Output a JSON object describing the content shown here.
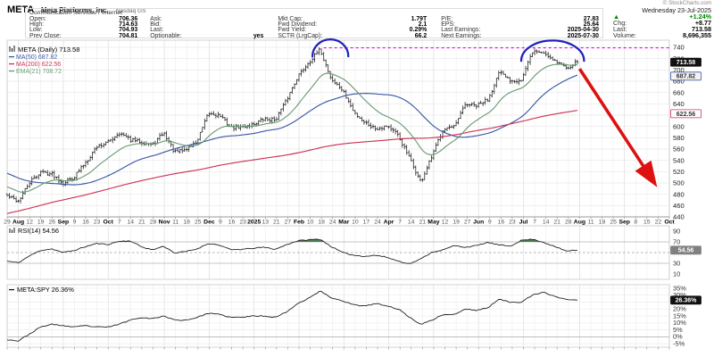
{
  "header": {
    "symbol": "META",
    "company": "Meta Platforms, Inc.",
    "exchange": "Nasdaq GS",
    "sector": "Communication Services / Internet",
    "quote_columns": [
      [
        {
          "label": "Open:",
          "value": "706.36"
        },
        {
          "label": "High:",
          "value": "714.63"
        },
        {
          "label": "Low:",
          "value": "704.93"
        },
        {
          "label": "Prev Close:",
          "value": "704.81"
        }
      ],
      [
        {
          "label": "Ask:",
          "value": ""
        },
        {
          "label": "Bid:",
          "value": ""
        },
        {
          "label": "Last:",
          "value": ""
        },
        {
          "label": "Optionable:",
          "value": "yes"
        }
      ],
      [
        {
          "label": "Mkt Cap:",
          "value": "1.79T"
        },
        {
          "label": "Fwd Dividend:",
          "value": "2.1"
        },
        {
          "label": "Fwd Yield:",
          "value": "0.29%"
        },
        {
          "label": "SCTR (LrgCap):",
          "value": "66.2"
        }
      ],
      [
        {
          "label": "P/E:",
          "value": "27.83"
        },
        {
          "label": "EPS:",
          "value": "25.64"
        },
        {
          "label": "Last Earnings:",
          "value": "2025-04-30"
        },
        {
          "label": "Next Earnings:",
          "value": "2025-07-30"
        }
      ]
    ],
    "dateline": {
      "copyright": "© StockCharts.com",
      "date": "Wednesday 23-Jul-2025",
      "direction_icon": "▲",
      "pct_change": "+1.24%",
      "up_color": "#008800",
      "rows": [
        {
          "label": "Chg:",
          "value": "+8.77"
        },
        {
          "label": "Last:",
          "value": "713.58"
        },
        {
          "label": "Volume:",
          "value": "8,696,355"
        }
      ]
    }
  },
  "chart_data": [
    {
      "type": "ohlc",
      "panel": "price",
      "title": "META (Daily) 713.58",
      "ylim": [
        440,
        740
      ],
      "y_ticks": [
        740,
        720,
        700,
        680,
        660,
        640,
        620,
        600,
        580,
        560,
        540,
        520,
        500,
        480,
        460,
        440
      ],
      "x_axis_labels": [
        {
          "t": "29"
        },
        {
          "t": "Aug",
          "bold": true
        },
        {
          "t": "12"
        },
        {
          "t": "19"
        },
        {
          "t": "26"
        },
        {
          "t": "Sep",
          "bold": true
        },
        {
          "t": "9"
        },
        {
          "t": "16"
        },
        {
          "t": "23"
        },
        {
          "t": "Oct",
          "bold": true
        },
        {
          "t": "7"
        },
        {
          "t": "14"
        },
        {
          "t": "21"
        },
        {
          "t": "28"
        },
        {
          "t": "Nov",
          "bold": true
        },
        {
          "t": "11"
        },
        {
          "t": "18"
        },
        {
          "t": "25"
        },
        {
          "t": "Dec",
          "bold": true
        },
        {
          "t": "9"
        },
        {
          "t": "16"
        },
        {
          "t": "23"
        },
        {
          "t": "2025",
          "bold": true
        },
        {
          "t": "13"
        },
        {
          "t": "21"
        },
        {
          "t": "27"
        },
        {
          "t": "Feb",
          "bold": true
        },
        {
          "t": "10"
        },
        {
          "t": "18"
        },
        {
          "t": "24"
        },
        {
          "t": "Mar",
          "bold": true
        },
        {
          "t": "10"
        },
        {
          "t": "17"
        },
        {
          "t": "24"
        },
        {
          "t": "Apr",
          "bold": true
        },
        {
          "t": "7"
        },
        {
          "t": "14"
        },
        {
          "t": "21"
        },
        {
          "t": "May",
          "bold": true
        },
        {
          "t": "12"
        },
        {
          "t": "19"
        },
        {
          "t": "27"
        },
        {
          "t": "Jun",
          "bold": true
        },
        {
          "t": "9"
        },
        {
          "t": "16"
        },
        {
          "t": "23"
        },
        {
          "t": "Jul",
          "bold": true
        },
        {
          "t": "7"
        },
        {
          "t": "14"
        },
        {
          "t": "21"
        },
        {
          "t": "28"
        },
        {
          "t": "Aug",
          "bold": true
        },
        {
          "t": "11"
        },
        {
          "t": "18"
        },
        {
          "t": "25"
        },
        {
          "t": "Sep",
          "bold": true
        },
        {
          "t": "8"
        },
        {
          "t": "15"
        },
        {
          "t": "22"
        },
        {
          "t": "Oct",
          "bold": true
        }
      ],
      "weekly_closes": [
        477,
        468,
        500,
        520,
        516,
        500,
        511,
        536,
        564,
        572,
        589,
        576,
        573,
        567,
        589,
        554,
        559,
        574,
        623,
        620,
        598,
        599,
        604,
        613,
        612,
        647,
        689,
        714,
        736,
        683,
        664,
        625,
        607,
        596,
        602,
        583,
        543,
        501,
        547,
        597,
        598,
        640,
        636,
        648,
        695,
        682,
        682,
        733,
        730,
        717,
        704,
        713.58
      ],
      "last_close": 713.58,
      "overlays": [
        {
          "name": "MA(50)",
          "value": "687.82",
          "color": "#3c59a5",
          "kind": "sma",
          "window": 50
        },
        {
          "name": "MA(200)",
          "value": "622.56",
          "color": "#cc3355",
          "kind": "sma",
          "window": 200
        },
        {
          "name": "EMA(21)",
          "value": "708.72",
          "color": "#6d9b74",
          "kind": "ema",
          "window": 21
        }
      ],
      "price_tags": [
        {
          "text": "713.58",
          "price": 713.58,
          "fill": "#111111",
          "text_color": "#ffffff"
        },
        {
          "text": "687.82",
          "price": 689,
          "fill": "#f4f4f4",
          "border": "#3c59a5",
          "text_color": "#333333"
        },
        {
          "text": "622.56",
          "price": 622.5,
          "fill": "#ffffff",
          "border": "#cc3355",
          "text_color": "#333333"
        }
      ],
      "annotations": {
        "resistance_line": {
          "price": 739,
          "from_day": 141,
          "to_day": 295,
          "color": "#ee00ee"
        },
        "arcs": [
          {
            "center_day": 144,
            "half_width_days": 8,
            "base_price": 724,
            "height_price": 30,
            "color": "#2222bb"
          },
          {
            "center_day": 243,
            "half_width_days": 14,
            "base_price": 716,
            "height_price": 36,
            "color": "#2222bb"
          }
        ],
        "arrow": {
          "from": {
            "day": 255,
            "price": 702
          },
          "to": {
            "day": 288,
            "price": 502
          },
          "color": "#dd1111"
        }
      }
    },
    {
      "type": "line",
      "panel": "rsi",
      "title": "RSI(14) 54.56",
      "ylim": [
        0,
        100
      ],
      "y_ticks": [
        90,
        70,
        30,
        10
      ],
      "upper_line": 70,
      "mid_line": 50,
      "lower_line": 30,
      "fill_above": 70,
      "fill_color": "#4f7d52",
      "weekly_values": [
        34,
        31,
        44,
        54,
        57,
        50,
        54,
        61,
        67,
        65,
        71,
        72,
        61,
        55,
        62,
        49,
        52,
        57,
        67,
        64,
        55,
        56,
        58,
        60,
        56,
        65,
        72,
        74,
        75,
        61,
        50,
        45,
        43,
        45,
        41,
        34,
        29,
        38,
        51,
        55,
        63,
        60,
        63,
        69,
        64,
        62,
        73,
        75,
        69,
        61,
        53,
        54.56
      ],
      "last_value": 54.56,
      "tag": {
        "text": "54.56",
        "value": 54.56,
        "fill": "#808080",
        "text_color": "#ffffff"
      }
    },
    {
      "type": "line",
      "panel": "ratio",
      "title": "META:SPY 26.36%",
      "ylim": [
        -7.5,
        37.5
      ],
      "y_tick_values": [
        35,
        30,
        25,
        20,
        15,
        10,
        5,
        0,
        -5
      ],
      "y_tick_labels": [
        "35%",
        "30%",
        "25%",
        "20%",
        "15%",
        "10%",
        "5%",
        "0%",
        "-5%"
      ],
      "zero_line": 0,
      "weekly_values": [
        -2,
        -3,
        2,
        7,
        9,
        8,
        7,
        8,
        7,
        7,
        9,
        12,
        14,
        13,
        15,
        12,
        12,
        14,
        17,
        16,
        14,
        14,
        15,
        15,
        14,
        18,
        24,
        28,
        33,
        28,
        26,
        23,
        22,
        24,
        22,
        20,
        14,
        9,
        12,
        16,
        16,
        20,
        19,
        21,
        27,
        25,
        25,
        30,
        32,
        29,
        27,
        26.36
      ],
      "last_value": 26.36,
      "tag": {
        "text": "26.36%",
        "value": 26.36,
        "fill": "#111111",
        "text_color": "#ffffff"
      }
    }
  ]
}
